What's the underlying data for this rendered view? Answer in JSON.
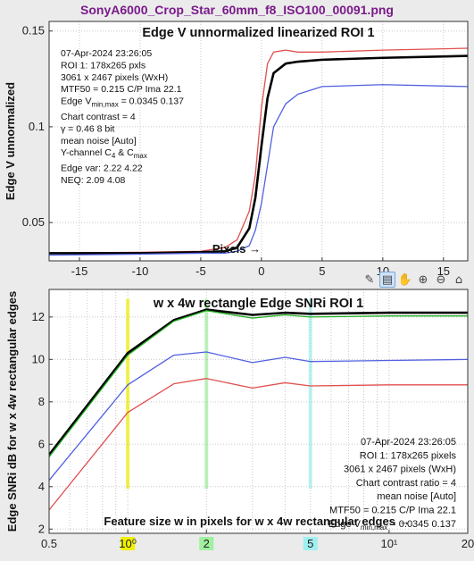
{
  "file_title": "SonyA6000_Crop_Star_60mm_f8_ISO100_00091.png",
  "toolbar": {
    "icons": [
      "brush-icon",
      "data-tips-icon",
      "pan-hand-icon",
      "zoom-in-icon",
      "zoom-out-icon",
      "home-icon"
    ],
    "glyphs": [
      "✎",
      "▤",
      "✋",
      "⊕",
      "⊖",
      "⌂"
    ]
  },
  "colors": {
    "black": "#000000",
    "red": "#e05050",
    "blue": "#5060e0",
    "green": "#20b020",
    "yellow": "#f0f000",
    "light_green": "#a0f0a0",
    "cyan": "#a0f0f0",
    "title": "#7a1a8a"
  },
  "chart_data": [
    {
      "type": "line",
      "title": "Edge V unnormalized linearized  ROI 1",
      "xlabel": "Pixels  →",
      "ylabel": "Edge V unnormalized",
      "xlim": [
        -17.5,
        17
      ],
      "ylim": [
        0.03,
        0.155
      ],
      "xticks": [
        -15,
        -10,
        -5,
        0,
        5,
        10,
        15
      ],
      "xtick_labels": [
        "-15",
        "-10",
        "-5",
        "0",
        "5",
        "10",
        "15"
      ],
      "yticks": [
        0.05,
        0.1,
        0.15
      ],
      "ytick_labels": [
        "0.05",
        "0.1",
        "0.15"
      ],
      "grid": true,
      "annotations": [
        "07-Apr-2024 23:26:05",
        "ROI 1:  178x265 pxls",
        "3061 x 2467 pixels (WxH)",
        "MTF50 = 0.215 C/P  Ima 22.1",
        "Edge Vmin,max = 0.0345 0.137",
        "Chart contrast = 4",
        "γ = 0.46   8 bit",
        "mean noise  [Auto]",
        "Y-channel C4 & Cmax",
        "Edge var:  2.22  4.22",
        "NEQ:       2.09  4.08"
      ],
      "series": [
        {
          "color": "red",
          "x": [
            -17.5,
            -10,
            -5,
            -3,
            -2,
            -1,
            -0.5,
            0,
            0.5,
            1,
            2,
            3,
            5,
            10,
            17
          ],
          "y": [
            0.034,
            0.0345,
            0.035,
            0.037,
            0.041,
            0.056,
            0.075,
            0.11,
            0.133,
            0.139,
            0.14,
            0.139,
            0.139,
            0.14,
            0.141
          ]
        },
        {
          "color": "black",
          "x": [
            -17.5,
            -10,
            -5,
            -3,
            -2,
            -1,
            -0.5,
            0,
            0.5,
            1,
            2,
            3,
            5,
            10,
            17
          ],
          "y": [
            0.034,
            0.034,
            0.0345,
            0.035,
            0.037,
            0.047,
            0.063,
            0.09,
            0.115,
            0.128,
            0.133,
            0.134,
            0.135,
            0.136,
            0.137
          ]
        },
        {
          "color": "blue",
          "x": [
            -17.5,
            -10,
            -5,
            -3,
            -2,
            -1,
            -0.5,
            0,
            0.5,
            1,
            2,
            3,
            5,
            10,
            17
          ],
          "y": [
            0.033,
            0.0335,
            0.034,
            0.034,
            0.035,
            0.038,
            0.046,
            0.06,
            0.08,
            0.1,
            0.112,
            0.117,
            0.121,
            0.122,
            0.121
          ]
        }
      ]
    },
    {
      "type": "line",
      "title": "w x 4w rectangle Edge SNRi   ROI 1",
      "xlabel": "Feature size w in pixels for w x 4w rectangular edges  →",
      "ylabel": "Edge SNRi dB for w x 4w rectangular edges",
      "x_scale": "log",
      "xlim": [
        0.5,
        20
      ],
      "ylim": [
        1.8,
        13.3
      ],
      "xticks": [
        0.5,
        1,
        2,
        5,
        10,
        20
      ],
      "xtick_labels": [
        "0.5",
        "10⁰",
        "2",
        "5",
        "10¹",
        "20"
      ],
      "highlighted_ticks": [
        {
          "x": 1,
          "color": "yellow"
        },
        {
          "x": 2,
          "color": "light_green"
        },
        {
          "x": 5,
          "color": "cyan"
        }
      ],
      "yticks": [
        2,
        4,
        6,
        8,
        10,
        12
      ],
      "ytick_labels": [
        "2",
        "4",
        "6",
        "8",
        "10",
        "12"
      ],
      "grid": true,
      "annotations": [
        "07-Apr-2024 23:26:05",
        "ROI 1:  178x265 pixels",
        "3061 x 2467 pixels (WxH)",
        "Chart contrast ratio = 4",
        "mean noise  [Auto]",
        "MTF50 = 0.215 C/P  Ima 22.1",
        "Edge Vmin,max = 0.0345 0.137"
      ],
      "series": [
        {
          "color": "black",
          "x": [
            0.5,
            1,
            1.5,
            2,
            3,
            4,
            5,
            10,
            20
          ],
          "y": [
            5.5,
            10.3,
            11.85,
            12.35,
            12.1,
            12.2,
            12.15,
            12.2,
            12.2
          ]
        },
        {
          "color": "green",
          "x": [
            0.5,
            1,
            1.5,
            2,
            3,
            4,
            5,
            10,
            20
          ],
          "y": [
            5.4,
            10.2,
            11.8,
            12.3,
            11.95,
            12.1,
            12.0,
            12.05,
            12.05
          ]
        },
        {
          "color": "blue",
          "x": [
            0.5,
            1,
            1.5,
            2,
            3,
            4,
            5,
            10,
            20
          ],
          "y": [
            4.3,
            8.8,
            10.2,
            10.35,
            9.85,
            10.1,
            9.9,
            9.95,
            10.0
          ]
        },
        {
          "color": "red",
          "x": [
            0.5,
            1,
            1.5,
            2,
            3,
            4,
            5,
            10,
            20
          ],
          "y": [
            2.9,
            7.5,
            8.85,
            9.1,
            8.65,
            8.9,
            8.75,
            8.8,
            8.8
          ]
        }
      ]
    }
  ]
}
